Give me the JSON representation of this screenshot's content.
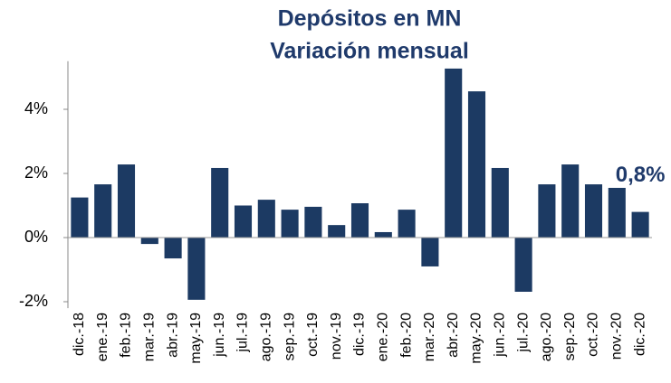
{
  "chart_data": {
    "type": "bar",
    "title": "Depósitos en MN",
    "subtitle": "Variación mensual",
    "categories": [
      "dic.-18",
      "ene.-19",
      "feb.-19",
      "mar.-19",
      "abr.-19",
      "may.-19",
      "jun.-19",
      "jul.-19",
      "ago.-19",
      "sep.-19",
      "oct.-19",
      "nov.-19",
      "dic.-19",
      "ene.-20",
      "feb.-20",
      "mar.-20",
      "abr.-20",
      "may.-20",
      "jun.-20",
      "jul.-20",
      "ago.-20",
      "sep.-20",
      "oct.-20",
      "nov.-20",
      "dic.-20"
    ],
    "values": [
      1.25,
      1.66,
      2.28,
      -0.2,
      -0.65,
      -1.94,
      2.17,
      1.0,
      1.18,
      0.87,
      0.96,
      0.39,
      1.07,
      0.17,
      0.87,
      -0.9,
      5.27,
      4.56,
      2.17,
      -1.69,
      1.66,
      2.28,
      1.66,
      1.55,
      0.8
    ],
    "annotation": "0,8%",
    "color": "#1c3a63",
    "ylim": [
      -2.2,
      5.5
    ],
    "yticks": [
      {
        "value": -2,
        "label": "-2%"
      },
      {
        "value": 0,
        "label": "0%"
      },
      {
        "value": 2,
        "label": "2%"
      },
      {
        "value": 4,
        "label": "4%"
      }
    ],
    "grid": false
  }
}
